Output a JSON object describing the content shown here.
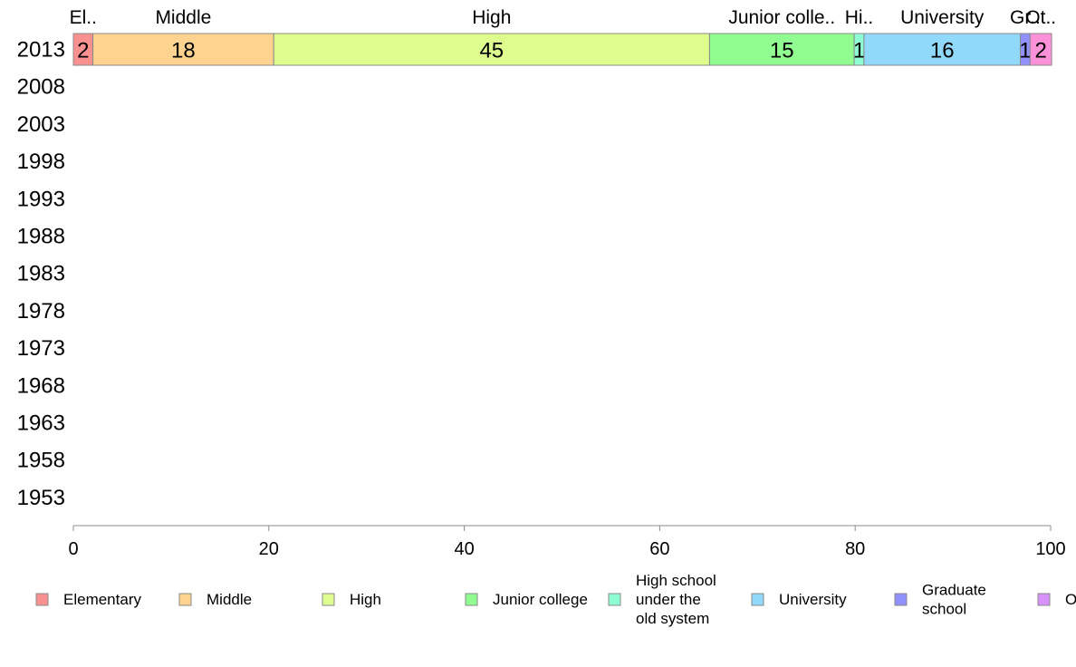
{
  "chart_data": {
    "type": "bar",
    "orientation": "horizontal",
    "stacked": true,
    "years": [
      "2013",
      "2008",
      "2003",
      "1998",
      "1993",
      "1988",
      "1983",
      "1978",
      "1973",
      "1968",
      "1963",
      "1958",
      "1953"
    ],
    "x_ticks": [
      "0",
      "20",
      "40",
      "60",
      "80",
      "100"
    ],
    "xlim": [
      0,
      100
    ],
    "grid": false,
    "legend_position": "bottom",
    "segments_2013": [
      {
        "category": "Elementary",
        "value": 2.0,
        "label": "2",
        "top_label": "El.."
      },
      {
        "category": "Middle",
        "value": 18.5,
        "label": "18",
        "top_label": "Middle"
      },
      {
        "category": "High",
        "value": 44.6,
        "label": "45",
        "top_label": "High"
      },
      {
        "category": "Junior college",
        "value": 14.8,
        "label": "15",
        "top_label": "Junior colle.."
      },
      {
        "category": "High school under the old system",
        "value": 1.0,
        "label": "1",
        "top_label": "Hi.."
      },
      {
        "category": "University",
        "value": 16.0,
        "label": "16",
        "top_label": "University"
      },
      {
        "category": "Graduate school",
        "value": 1.0,
        "label": "1",
        "top_label": "Gr.."
      },
      {
        "category": "Other",
        "value": 2.2,
        "label": "2",
        "top_label": "Ot.."
      }
    ],
    "series_colors": [
      "#f99191",
      "#fdd38f",
      "#ddfd8f",
      "#91fd91",
      "#8ffdd3",
      "#91d9fb",
      "#9191fb",
      "#d891fb"
    ],
    "bar_fill_colors": [
      "#f99191",
      "#fdd38f",
      "#ddfd8f",
      "#91fd91",
      "#8ffdd3",
      "#91d9fb",
      "#9191fb",
      "#fb91d8"
    ],
    "legend": [
      {
        "lines": [
          "Elementary"
        ]
      },
      {
        "lines": [
          "Middle"
        ]
      },
      {
        "lines": [
          "High"
        ]
      },
      {
        "lines": [
          "Junior college"
        ]
      },
      {
        "lines": [
          "High school",
          "under the",
          "old system"
        ]
      },
      {
        "lines": [
          "University"
        ]
      },
      {
        "lines": [
          "Graduate",
          "school"
        ]
      },
      {
        "lines": [
          "Other"
        ]
      }
    ]
  }
}
